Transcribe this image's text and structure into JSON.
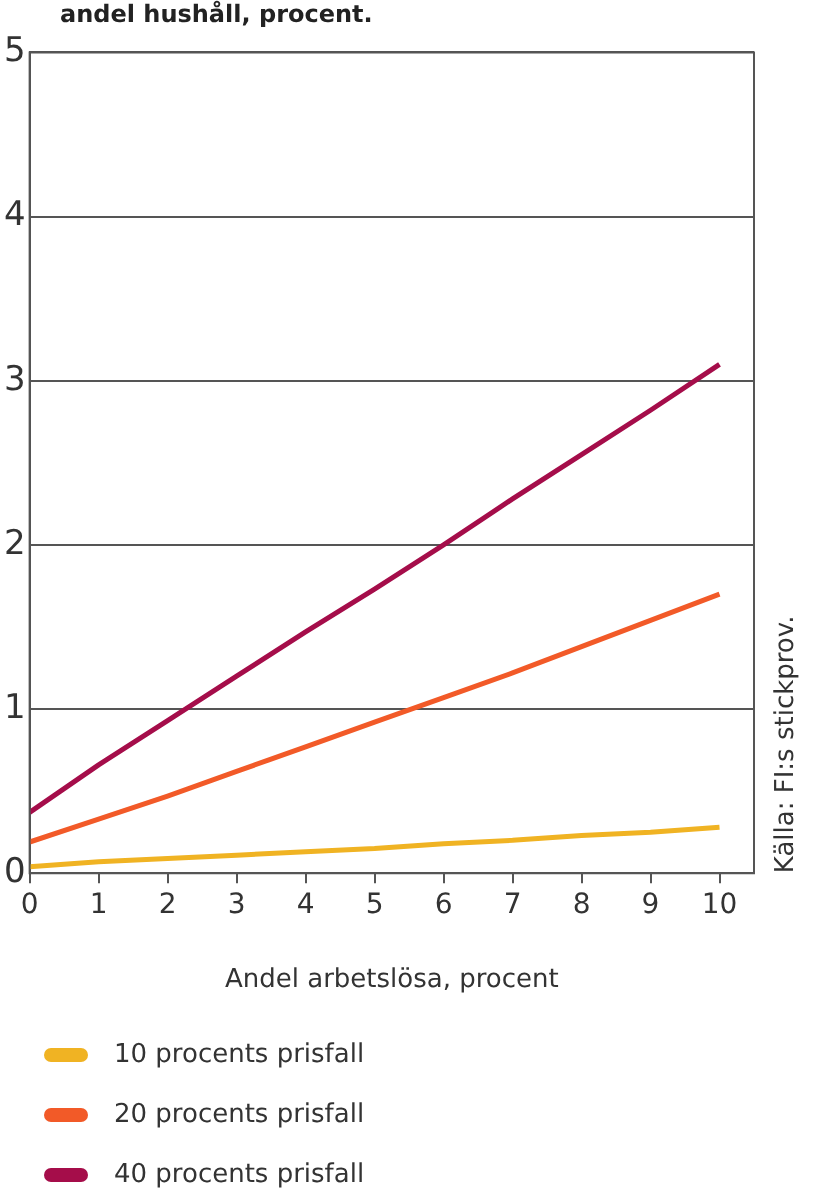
{
  "chart_data": {
    "type": "line",
    "title": "andel hushåll, procent.",
    "xlabel": "Andel arbetslösa, procent",
    "x": [
      0,
      1,
      2,
      3,
      4,
      5,
      6,
      7,
      8,
      9,
      10
    ],
    "series": [
      {
        "name": "10 procents prisfall",
        "color": "#f0b323",
        "values": [
          0.04,
          0.07,
          0.09,
          0.11,
          0.13,
          0.15,
          0.18,
          0.2,
          0.23,
          0.25,
          0.28
        ]
      },
      {
        "name": "20 procents prisfall",
        "color": "#f25a28",
        "values": [
          0.19,
          0.33,
          0.47,
          0.62,
          0.77,
          0.92,
          1.07,
          1.22,
          1.38,
          1.54,
          1.7
        ]
      },
      {
        "name": "40 procents prisfall",
        "color": "#a50d4a",
        "values": [
          0.37,
          0.66,
          0.93,
          1.2,
          1.47,
          1.73,
          2.0,
          2.28,
          2.55,
          2.82,
          3.1
        ]
      }
    ],
    "xlim": [
      0,
      10.5
    ],
    "xticks": [
      0,
      1,
      2,
      3,
      4,
      5,
      6,
      7,
      8,
      9,
      10
    ],
    "ylim": [
      0,
      5
    ],
    "yticks": [
      0,
      1,
      2,
      3,
      4,
      5
    ],
    "grid": "y",
    "legend": "bottom",
    "marker": "none",
    "line_style": "solid",
    "annotations": [
      "Källa: FI:s stickprov."
    ]
  }
}
